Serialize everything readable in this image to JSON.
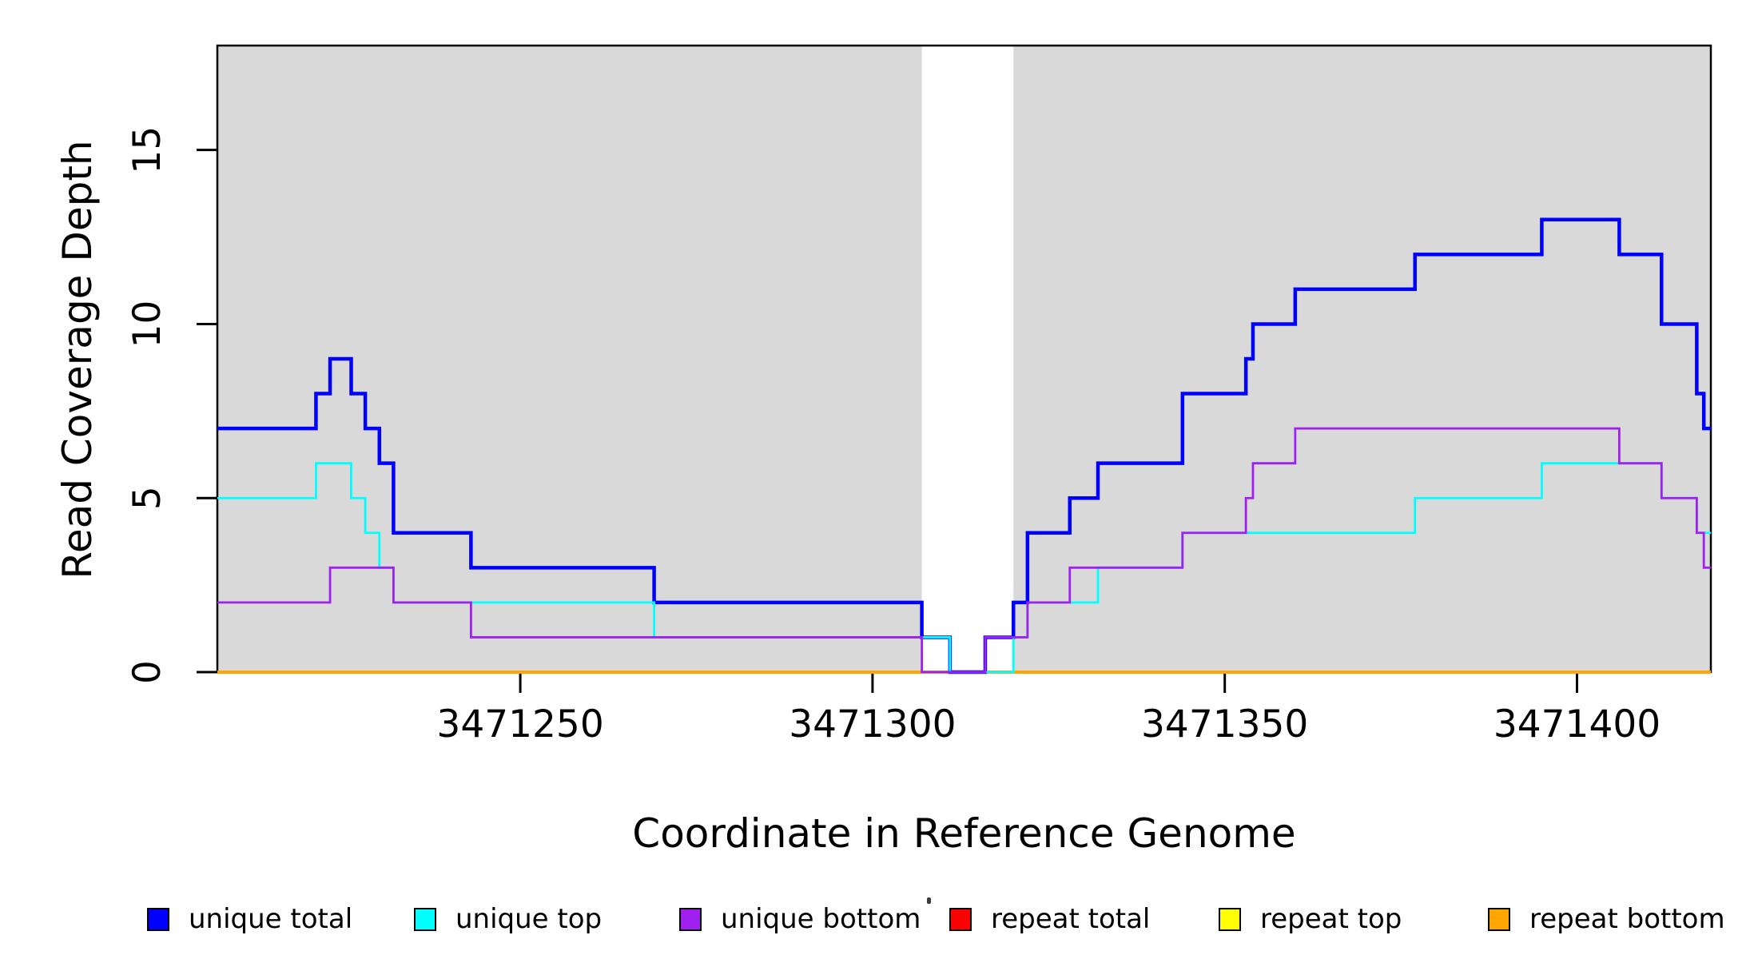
{
  "legend": {
    "items": [
      {
        "label": "unique total",
        "color": "#0000FF"
      },
      {
        "label": "unique top",
        "color": "#00FFFF"
      },
      {
        "label": "unique bottom",
        "color": "#A020F0"
      },
      {
        "label": "repeat total",
        "color": "#FF0000"
      },
      {
        "label": "repeat top",
        "color": "#FFFF00"
      },
      {
        "label": "repeat bottom",
        "color": "#FFA500"
      }
    ]
  },
  "chart_data": {
    "type": "line",
    "subtype": "step-coverage",
    "title": "",
    "xlabel": "Coordinate in Reference Genome",
    "ylabel": "Read Coverage Depth",
    "xlim": [
      3471207,
      3471419
    ],
    "ylim": [
      0,
      18
    ],
    "xticks": [
      3471250,
      3471300,
      3471350,
      3471400
    ],
    "yticks": [
      0,
      5,
      10,
      15
    ],
    "grid": false,
    "legend_position": "bottom",
    "shade_color": "#D9D9D9",
    "shaded_regions": [
      [
        3471207,
        3471307
      ],
      [
        3471320,
        3471419
      ]
    ],
    "series": [
      {
        "name": "repeat total",
        "color": "#FF0000",
        "width": 3.2,
        "steps": [
          [
            3471207,
            0
          ],
          [
            3471419,
            0
          ]
        ]
      },
      {
        "name": "repeat top",
        "color": "#FFFF00",
        "width": 3.2,
        "steps": [
          [
            3471207,
            0
          ],
          [
            3471419,
            0
          ]
        ]
      },
      {
        "name": "repeat bottom",
        "color": "#FFA500",
        "width": 4,
        "steps": [
          [
            3471207,
            0
          ],
          [
            3471419,
            0
          ]
        ]
      },
      {
        "name": "unique total",
        "color": "#0000FF",
        "width": 4.5,
        "steps": [
          [
            3471207,
            7
          ],
          [
            3471221,
            8
          ],
          [
            3471223,
            9
          ],
          [
            3471226,
            8
          ],
          [
            3471228,
            7
          ],
          [
            3471230,
            6
          ],
          [
            3471232,
            4
          ],
          [
            3471243,
            3
          ],
          [
            3471269,
            2
          ],
          [
            3471307,
            1
          ],
          [
            3471311,
            0
          ],
          [
            3471316,
            1
          ],
          [
            3471320,
            2
          ],
          [
            3471322,
            4
          ],
          [
            3471328,
            5
          ],
          [
            3471332,
            6
          ],
          [
            3471344,
            8
          ],
          [
            3471353,
            9
          ],
          [
            3471354,
            10
          ],
          [
            3471360,
            11
          ],
          [
            3471377,
            12
          ],
          [
            3471395,
            13
          ],
          [
            3471406,
            12
          ],
          [
            3471412,
            10
          ],
          [
            3471417,
            8
          ],
          [
            3471418,
            7
          ],
          [
            3471419,
            7
          ]
        ]
      },
      {
        "name": "unique top",
        "color": "#00FFFF",
        "width": 2.8,
        "steps": [
          [
            3471207,
            5
          ],
          [
            3471221,
            6
          ],
          [
            3471226,
            5
          ],
          [
            3471228,
            4
          ],
          [
            3471230,
            3
          ],
          [
            3471232,
            2
          ],
          [
            3471269,
            1
          ],
          [
            3471311,
            0
          ],
          [
            3471320,
            1
          ],
          [
            3471322,
            2
          ],
          [
            3471332,
            3
          ],
          [
            3471344,
            4
          ],
          [
            3471377,
            5
          ],
          [
            3471395,
            6
          ],
          [
            3471412,
            5
          ],
          [
            3471417,
            4
          ],
          [
            3471419,
            4
          ]
        ]
      },
      {
        "name": "unique bottom",
        "color": "#A020F0",
        "width": 2.8,
        "steps": [
          [
            3471207,
            2
          ],
          [
            3471223,
            3
          ],
          [
            3471232,
            2
          ],
          [
            3471243,
            1
          ],
          [
            3471307,
            0
          ],
          [
            3471316,
            1
          ],
          [
            3471322,
            2
          ],
          [
            3471328,
            3
          ],
          [
            3471344,
            4
          ],
          [
            3471353,
            5
          ],
          [
            3471354,
            6
          ],
          [
            3471360,
            7
          ],
          [
            3471406,
            6
          ],
          [
            3471412,
            5
          ],
          [
            3471417,
            4
          ],
          [
            3471418,
            3
          ],
          [
            3471419,
            3
          ]
        ]
      }
    ]
  }
}
